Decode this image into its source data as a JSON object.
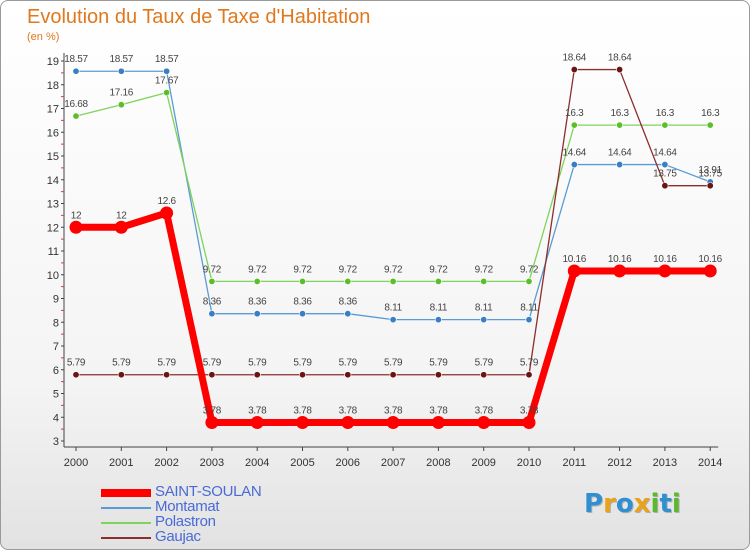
{
  "title": "Evolution du Taux de Taxe d'Habitation",
  "subtitle": "(en %)",
  "logo": {
    "letters": [
      {
        "ch": "P",
        "color": "#2f8fd0"
      },
      {
        "ch": "r",
        "color": "#e8a21b"
      },
      {
        "ch": "o",
        "color": "#2f8fd0"
      },
      {
        "ch": "x",
        "color": "#e8a21b"
      },
      {
        "ch": "i",
        "color": "#5cb82e"
      },
      {
        "ch": "t",
        "color": "#2f8fd0"
      },
      {
        "ch": "i",
        "color": "#5cb82e"
      }
    ]
  },
  "chart_data": {
    "type": "line",
    "title": "Evolution du Taux de Taxe d'Habitation",
    "ylabel": "(en %)",
    "xlabel": "",
    "x": [
      "2000",
      "2001",
      "2002",
      "2003",
      "2004",
      "2005",
      "2006",
      "2007",
      "2008",
      "2009",
      "2010",
      "2011",
      "2012",
      "2013",
      "2014"
    ],
    "ylim": [
      3,
      19
    ],
    "yticks": [
      3,
      4,
      5,
      6,
      7,
      8,
      9,
      10,
      11,
      12,
      13,
      14,
      15,
      16,
      17,
      18,
      19
    ],
    "grid": false,
    "legend_position": "bottom-left",
    "series": [
      {
        "name": "SAINT-SOULAN",
        "color": "#ff0000",
        "style": "thick",
        "values": [
          12,
          12,
          12.6,
          3.78,
          3.78,
          3.78,
          3.78,
          3.78,
          3.78,
          3.78,
          3.78,
          10.16,
          10.16,
          10.16,
          10.16
        ],
        "labels": [
          "12",
          "12",
          "12.6",
          "3.78",
          "3.78",
          "3.78",
          "3.78",
          "3.78",
          "3.78",
          "3.78",
          "3.78",
          "10.16",
          "10.16",
          "10.16",
          "10.16"
        ]
      },
      {
        "name": "Montamat",
        "color": "#5b9bd5",
        "marker": "#3a7fc4",
        "style": "thin",
        "values": [
          18.57,
          18.57,
          18.57,
          8.36,
          8.36,
          8.36,
          8.36,
          8.11,
          8.11,
          8.11,
          8.11,
          14.64,
          14.64,
          14.64,
          13.91
        ],
        "labels": [
          "18.57",
          "18.57",
          "18.57",
          "8.36",
          "8.36",
          "8.36",
          "8.36",
          "8.11",
          "8.11",
          "8.11",
          "8.11",
          "14.64",
          "14.64",
          "14.64",
          "13.91"
        ]
      },
      {
        "name": "Polastron",
        "color": "#7fd35a",
        "marker": "#5cbf2a",
        "style": "thin",
        "values": [
          16.68,
          17.16,
          17.67,
          9.72,
          9.72,
          9.72,
          9.72,
          9.72,
          9.72,
          9.72,
          9.72,
          16.3,
          16.3,
          16.3,
          16.3
        ],
        "labels": [
          "16.68",
          "17.16",
          "17.67",
          "9.72",
          "9.72",
          "9.72",
          "9.72",
          "9.72",
          "9.72",
          "9.72",
          "9.72",
          "16.3",
          "16.3",
          "16.3",
          "16.3"
        ]
      },
      {
        "name": "Gaujac",
        "color": "#8b2e2e",
        "marker": "#6b1414",
        "style": "thin",
        "values": [
          5.79,
          5.79,
          5.79,
          5.79,
          5.79,
          5.79,
          5.79,
          5.79,
          5.79,
          5.79,
          5.79,
          18.64,
          18.64,
          13.75,
          13.75
        ],
        "labels": [
          "5.79",
          "5.79",
          "5.79",
          "5.79",
          "5.79",
          "5.79",
          "5.79",
          "5.79",
          "5.79",
          "5.79",
          "5.79",
          "18.64",
          "18.64",
          "13.75",
          "13.75"
        ]
      }
    ]
  }
}
